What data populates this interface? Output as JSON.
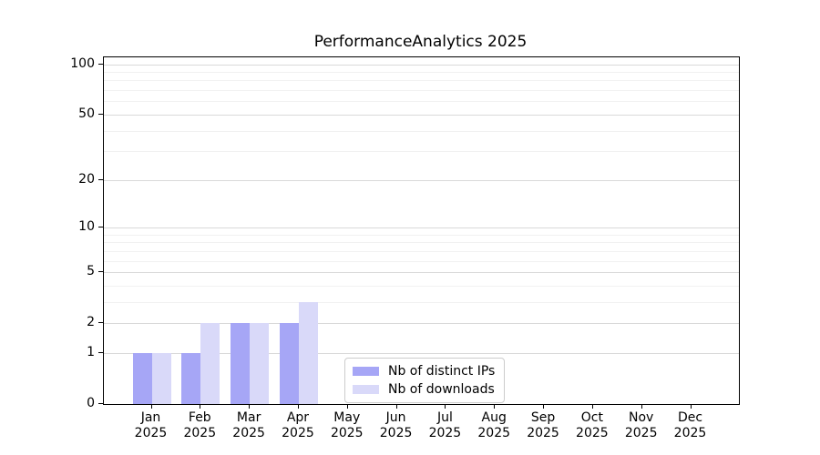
{
  "title": "PerformanceAnalytics 2025",
  "chart_data": {
    "type": "bar",
    "title": "PerformanceAnalytics 2025",
    "categories": [
      "Jan",
      "Feb",
      "Mar",
      "Apr",
      "May",
      "Jun",
      "Jul",
      "Aug",
      "Sep",
      "Oct",
      "Nov",
      "Dec"
    ],
    "category_year": "2025",
    "series": [
      {
        "name": "Nb of distinct IPs",
        "color": "#a6a6f6",
        "values": [
          1,
          1,
          2,
          2,
          0,
          0,
          0,
          0,
          0,
          0,
          0,
          0
        ]
      },
      {
        "name": "Nb of downloads",
        "color": "#d9d9f9",
        "values": [
          1,
          2,
          2,
          3,
          0,
          0,
          0,
          0,
          0,
          0,
          0,
          0
        ]
      }
    ],
    "xlabel": "",
    "ylabel": "",
    "yscale": "log1p",
    "ylim": [
      0,
      110
    ],
    "yticks": [
      0,
      1,
      2,
      5,
      10,
      20,
      50,
      100
    ],
    "minor_yticks": [
      3,
      4,
      6,
      7,
      8,
      9,
      30,
      40,
      60,
      70,
      80,
      90
    ],
    "grid": "horizontal-on",
    "legend_position": "lower-center-inside"
  }
}
